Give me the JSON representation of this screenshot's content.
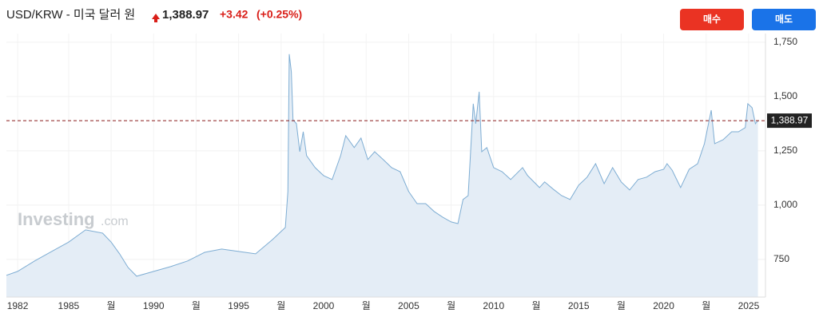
{
  "chart_data": {
    "type": "area",
    "title": "USD/KRW - 미국 달러 원",
    "last": {
      "value": 1388.97,
      "label": "1,388.97"
    },
    "change": "+3.42",
    "change_pct": "(+0.25%)",
    "buttons": [
      "매수",
      "매도"
    ],
    "watermark": [
      "Investing",
      ".com"
    ],
    "color": "#7eadd3",
    "fill_color": "#e4edf6",
    "grid": true,
    "xlim": [
      1981.34,
      2025.99
    ],
    "ylim": [
      577,
      1790
    ],
    "xticks": [
      1982,
      1985,
      {
        "value": 1987.5,
        "label": "월"
      },
      1990,
      {
        "value": 1992.5,
        "label": "월"
      },
      1995,
      {
        "value": 1997.5,
        "label": "월"
      },
      2000,
      {
        "value": 2002.5,
        "label": "월"
      },
      2005,
      {
        "value": 2007.5,
        "label": "월"
      },
      2010,
      {
        "value": 2012.5,
        "label": "월"
      },
      2015,
      {
        "value": 2017.5,
        "label": "월"
      },
      2020,
      {
        "value": 2022.5,
        "label": "월"
      },
      2025
    ],
    "yticks": [
      750,
      {
        "value": 1000,
        "label": "1,000"
      },
      {
        "value": 1250,
        "label": "1,250"
      },
      {
        "value": 1500,
        "label": "1,500"
      },
      {
        "value": 1750,
        "label": "1,750"
      }
    ],
    "x": [
      1981.34,
      1982,
      1983,
      1984,
      1985,
      1986,
      1987,
      1987.5,
      1988,
      1988.5,
      1989,
      1990,
      1991,
      1992,
      1993,
      1994,
      1995,
      1996,
      1997,
      1997.75,
      1997.9,
      1997.98,
      1998.1,
      1998.2,
      1998.4,
      1998.6,
      1998.8,
      1999,
      1999.5,
      2000,
      2000.5,
      2001,
      2001.3,
      2001.8,
      2002.2,
      2002.6,
      2003,
      2003.5,
      2004,
      2004.5,
      2005,
      2005.5,
      2006,
      2006.5,
      2007,
      2007.5,
      2007.9,
      2008.2,
      2008.5,
      2008.8,
      2008.95,
      2009.15,
      2009.3,
      2009.6,
      2010,
      2010.5,
      2011,
      2011.7,
      2012,
      2012.7,
      2013,
      2013.5,
      2014,
      2014.5,
      2015,
      2015.5,
      2016,
      2016.5,
      2017,
      2017.5,
      2018,
      2018.5,
      2019,
      2019.5,
      2020,
      2020.2,
      2020.5,
      2021,
      2021.5,
      2022,
      2022.4,
      2022.8,
      2023,
      2023.5,
      2024,
      2024.4,
      2024.8,
      2024.95,
      2025.2,
      2025.4,
      2025.55
    ],
    "values": [
      677,
      695,
      743,
      787,
      830,
      886,
      871,
      830,
      776,
      713,
      673,
      695,
      717,
      743,
      783,
      798,
      787,
      776,
      842,
      897,
      1063,
      1695,
      1614,
      1393,
      1375,
      1246,
      1338,
      1228,
      1173,
      1136,
      1118,
      1228,
      1320,
      1265,
      1309,
      1210,
      1246,
      1210,
      1173,
      1154,
      1063,
      1007,
      1007,
      971,
      945,
      923,
      915,
      1026,
      1044,
      1467,
      1375,
      1522,
      1246,
      1265,
      1173,
      1154,
      1118,
      1173,
      1136,
      1081,
      1107,
      1074,
      1044,
      1026,
      1092,
      1129,
      1191,
      1099,
      1173,
      1107,
      1070,
      1118,
      1129,
      1154,
      1165,
      1191,
      1161,
      1081,
      1165,
      1191,
      1283,
      1437,
      1283,
      1301,
      1338,
      1338,
      1357,
      1467,
      1449,
      1375,
      1389
    ]
  }
}
